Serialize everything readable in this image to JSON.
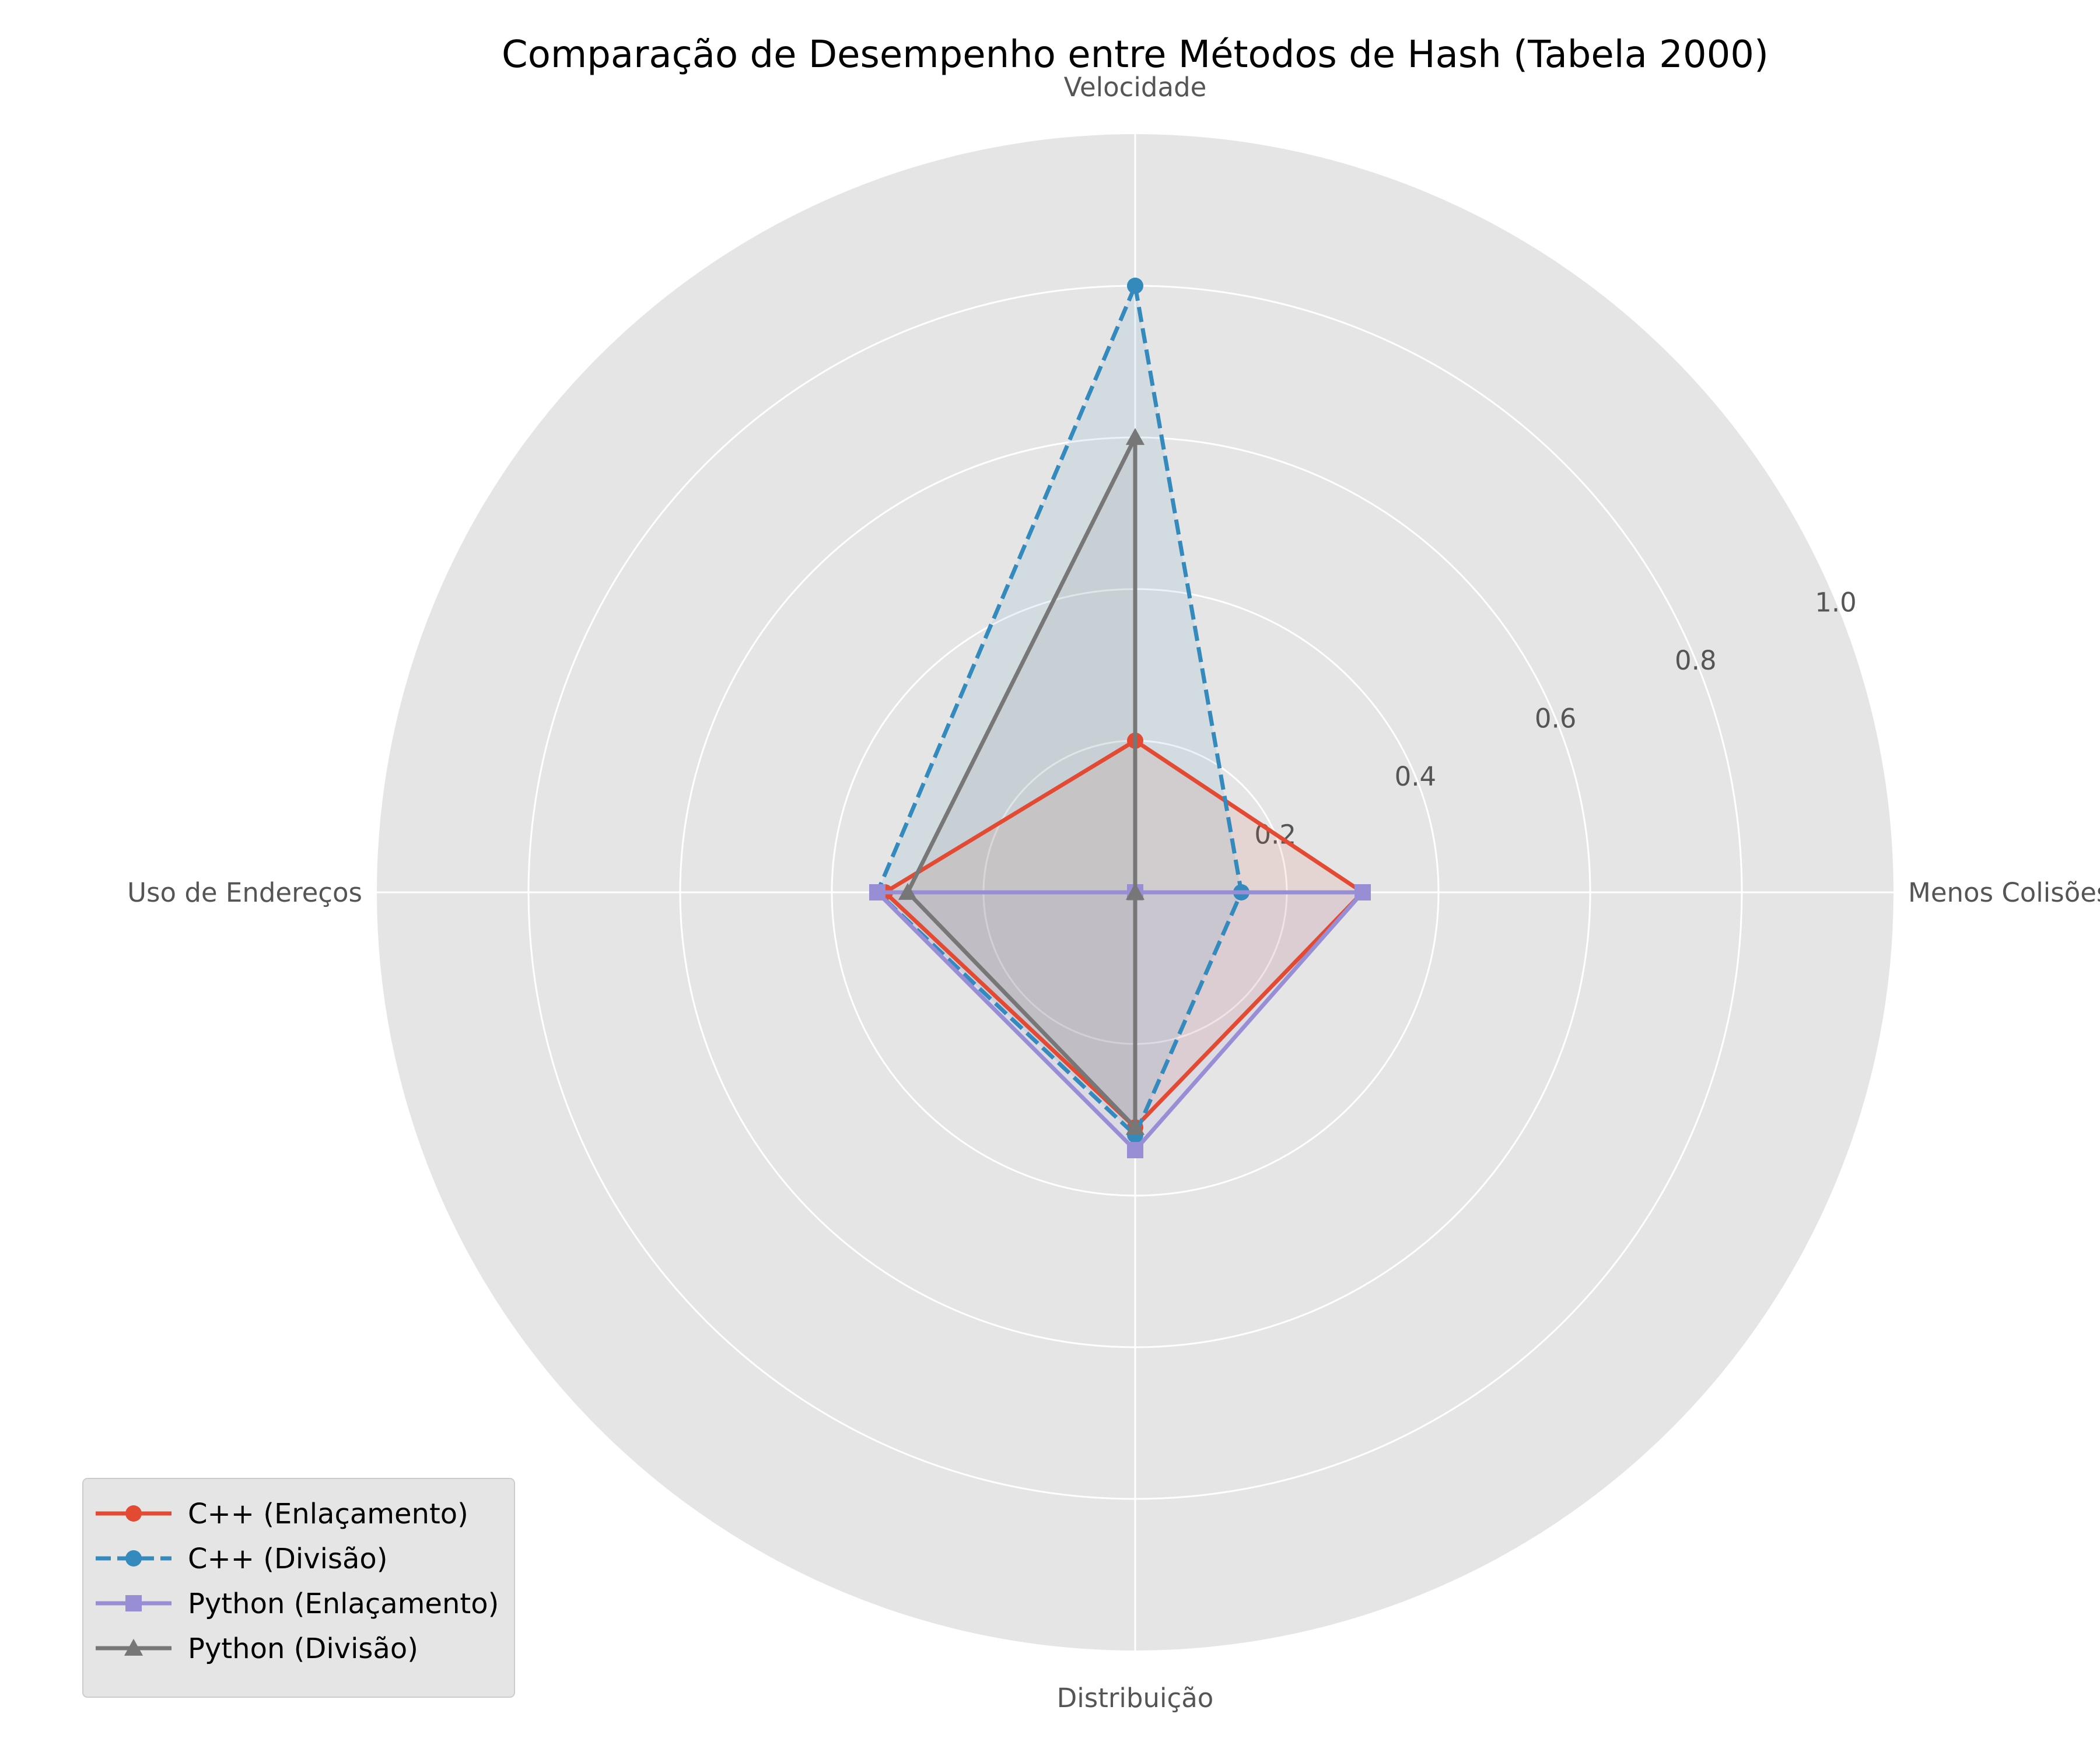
{
  "chart_data": {
    "type": "radar",
    "title": "Comparação de Desempenho entre Métodos de Hash (Tabela 2000)",
    "axes": [
      "Velocidade",
      "Menos Colisões",
      "Distribuição",
      "Uso de Endereços"
    ],
    "rlim": [
      0,
      1.0
    ],
    "r_ticks": [
      "0.2",
      "0.4",
      "0.6",
      "0.8",
      "1.0"
    ],
    "r_tick_values": [
      0.2,
      0.4,
      0.6,
      0.8,
      1.0
    ],
    "grid": true,
    "legend_position": "lower-left",
    "series": [
      {
        "name": "C++ (Enlaçamento)",
        "values": [
          0.2,
          0.3,
          0.31,
          0.33
        ],
        "color": "#E24A33",
        "line_style": "solid",
        "marker": "circle"
      },
      {
        "name": "C++ (Divisão)",
        "values": [
          0.8,
          0.14,
          0.32,
          0.34
        ],
        "color": "#348ABD",
        "line_style": "dashed",
        "marker": "circle"
      },
      {
        "name": "Python (Enlaçamento)",
        "values": [
          0.0,
          0.3,
          0.34,
          0.34
        ],
        "color": "#988ED5",
        "line_style": "solid",
        "marker": "square"
      },
      {
        "name": "Python (Divisão)",
        "values": [
          0.6,
          0.0,
          0.31,
          0.3
        ],
        "color": "#777777",
        "line_style": "solid",
        "marker": "triangle"
      }
    ]
  }
}
